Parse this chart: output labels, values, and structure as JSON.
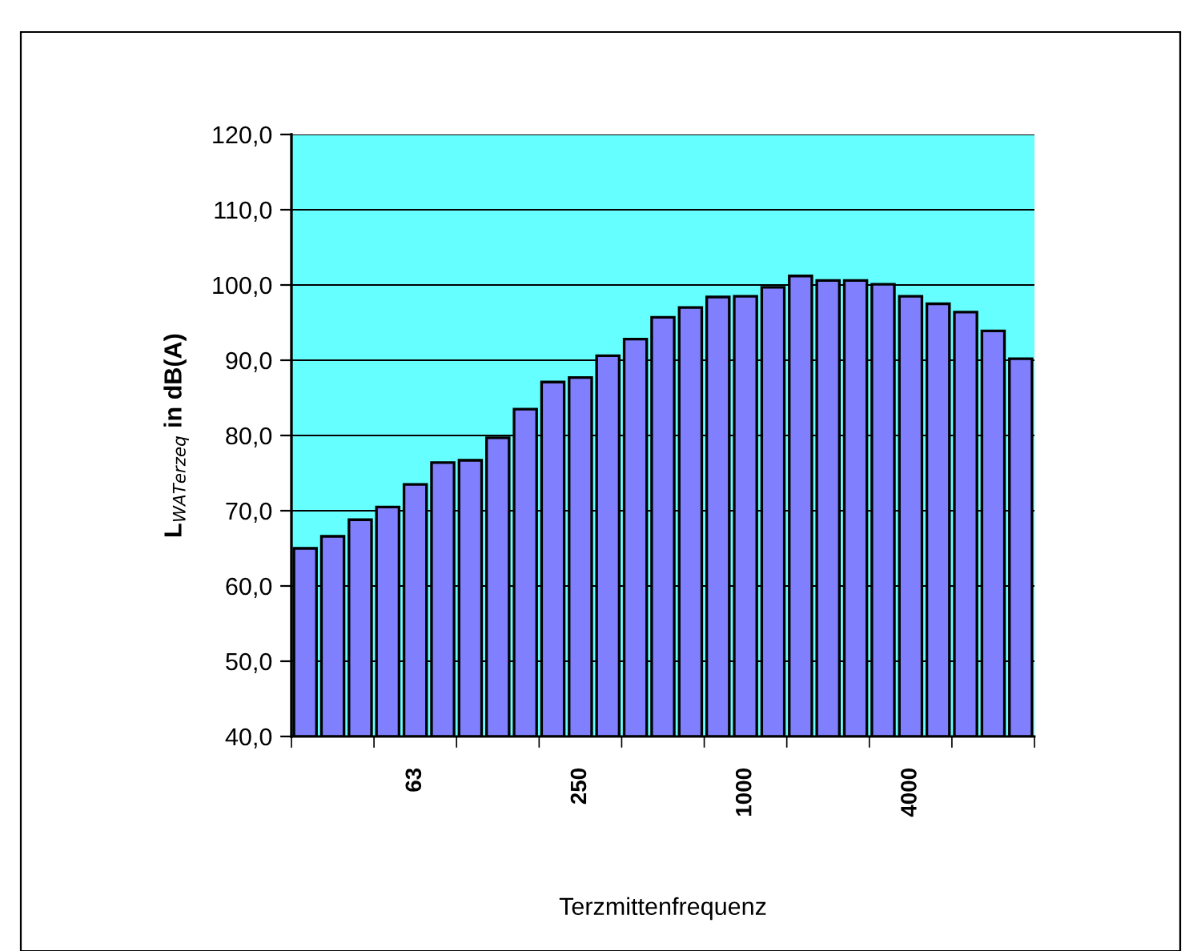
{
  "chart_data": {
    "type": "bar",
    "xlabel": "Terzmittenfrequenz",
    "ylabel": "L$_{WATerzeq}$ in dB(A)",
    "categories": [
      null,
      null,
      null,
      null,
      "63",
      null,
      null,
      null,
      null,
      null,
      "250",
      null,
      null,
      null,
      null,
      null,
      "1000",
      null,
      null,
      null,
      null,
      null,
      "4000",
      null,
      null,
      null,
      null
    ],
    "values": [
      65.0,
      66.6,
      68.8,
      70.5,
      73.5,
      76.4,
      76.7,
      79.7,
      83.5,
      87.1,
      87.7,
      90.6,
      92.8,
      95.7,
      97.0,
      98.4,
      98.5,
      99.7,
      101.2,
      100.6,
      100.6,
      100.1,
      98.5,
      97.5,
      96.4,
      93.9,
      90.2
    ],
    "color": "#8080ff",
    "ylim": [
      40,
      120
    ],
    "yticks": [
      {
        "value": 40,
        "label": "40,0"
      },
      {
        "value": 50,
        "label": "50,0"
      },
      {
        "value": 60,
        "label": "60,0"
      },
      {
        "value": 70,
        "label": "70,0"
      },
      {
        "value": 80,
        "label": "80,0"
      },
      {
        "value": 90,
        "label": "90,0"
      },
      {
        "value": 100,
        "label": "100,0"
      },
      {
        "value": 110,
        "label": "110,0"
      },
      {
        "value": 120,
        "label": "120,0"
      }
    ],
    "grid": "y"
  }
}
